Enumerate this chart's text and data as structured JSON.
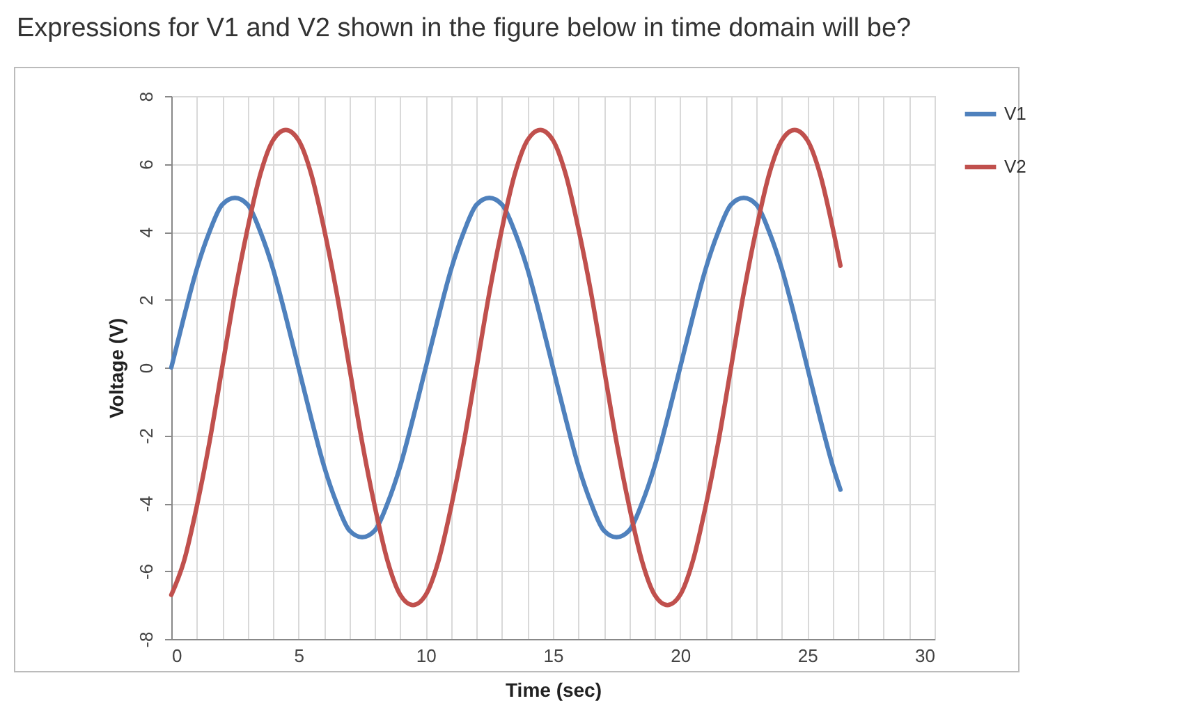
{
  "chart_data": {
    "type": "line",
    "title": "Expressions for V1 and V2 shown in the figure below in time domain will be?",
    "xlabel": "Time (sec)",
    "ylabel": "Voltage (V)",
    "x": [
      0,
      0.5,
      1,
      1.5,
      2,
      2.5,
      3,
      3.5,
      4,
      4.5,
      5,
      5.5,
      6,
      6.5,
      7,
      7.5,
      8,
      8.5,
      9,
      9.5,
      10,
      10.5,
      11,
      11.5,
      12,
      12.5,
      13,
      13.5,
      14,
      14.5,
      15,
      15.5,
      16,
      16.5,
      17,
      17.5,
      18,
      18.5,
      19,
      19.5,
      20,
      20.5,
      21,
      21.5,
      22,
      22.5,
      23,
      23.5,
      24,
      24.5,
      25,
      25.5,
      26,
      26.3
    ],
    "series": [
      {
        "name": "V1",
        "color": "#4f81bd",
        "values": [
          0,
          1.5,
          2.9,
          4,
          4.8,
          5,
          4.8,
          4,
          2.9,
          1.5,
          0,
          -1.5,
          -2.9,
          -4,
          -4.8,
          -5,
          -4.8,
          -4,
          -2.9,
          -1.5,
          0,
          1.5,
          2.9,
          4,
          4.8,
          5,
          4.8,
          4,
          2.9,
          1.5,
          0,
          -1.5,
          -2.9,
          -4,
          -4.8,
          -5,
          -4.8,
          -4,
          -2.9,
          -1.5,
          0,
          1.5,
          2.9,
          4,
          4.8,
          5,
          4.8,
          4,
          2.9,
          1.5,
          0,
          -1.5,
          -2.9,
          -3.6
        ]
      },
      {
        "name": "V2",
        "color": "#c0504d",
        "values": [
          -6.7,
          -5.7,
          -4.1,
          -2.2,
          0,
          2.2,
          4.1,
          5.7,
          6.7,
          7,
          6.7,
          5.7,
          4.1,
          2.2,
          0,
          -2.2,
          -4.1,
          -5.7,
          -6.7,
          -7,
          -6.7,
          -5.7,
          -4.1,
          -2.2,
          0,
          2.2,
          4.1,
          5.7,
          6.7,
          7,
          6.7,
          5.7,
          4.1,
          2.2,
          0,
          -2.2,
          -4.1,
          -5.7,
          -6.7,
          -7,
          -6.7,
          -5.7,
          -4.1,
          -2.2,
          0,
          2.2,
          4.1,
          5.7,
          6.7,
          7,
          6.7,
          5.7,
          4.1,
          3.0
        ]
      }
    ],
    "xlim": [
      0,
      30
    ],
    "xticks": [
      0,
      {
        "value": 1,
        "label": null
      },
      {
        "value": 2,
        "label": null
      },
      {
        "value": 3,
        "label": null
      },
      {
        "value": 4,
        "label": null
      },
      5,
      {
        "value": 6,
        "label": null
      },
      {
        "value": 7,
        "label": null
      },
      {
        "value": 8,
        "label": null
      },
      {
        "value": 9,
        "label": null
      },
      10,
      {
        "value": 11,
        "label": null
      },
      {
        "value": 12,
        "label": null
      },
      {
        "value": 13,
        "label": null
      },
      {
        "value": 14,
        "label": null
      },
      15,
      {
        "value": 16,
        "label": null
      },
      {
        "value": 17,
        "label": null
      },
      {
        "value": 18,
        "label": null
      },
      {
        "value": 19,
        "label": null
      },
      20,
      {
        "value": 21,
        "label": null
      },
      {
        "value": 22,
        "label": null
      },
      {
        "value": 23,
        "label": null
      },
      {
        "value": 24,
        "label": null
      },
      25,
      {
        "value": 26,
        "label": null
      },
      {
        "value": 27,
        "label": null
      },
      {
        "value": 28,
        "label": null
      },
      {
        "value": 29,
        "label": null
      },
      30
    ],
    "ylim": [
      -8,
      8
    ],
    "yticks": [
      -8,
      -6,
      -4,
      -2,
      0,
      2,
      4,
      6,
      8
    ],
    "grid": true,
    "legend": "right",
    "marker": "none",
    "line_style": "solid"
  }
}
